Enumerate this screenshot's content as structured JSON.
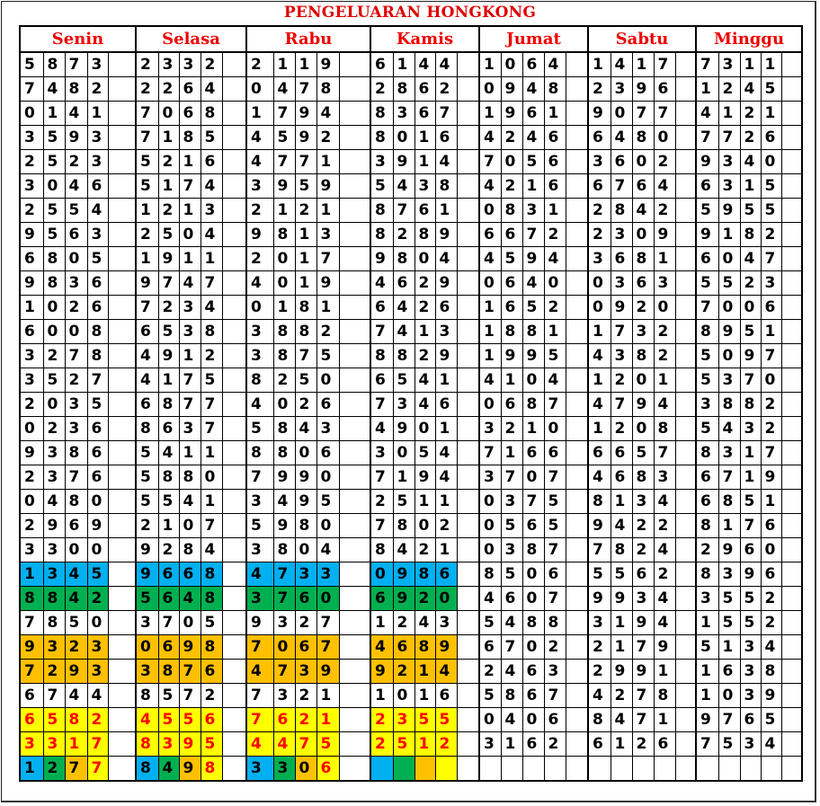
{
  "title": "PENGELUARAN HONGKONG",
  "colors": {
    "blue": "#00b0f0",
    "green": "#00b050",
    "orange": "#ffc000",
    "yellow": "#ffff00",
    "header_text": "#ee0000",
    "highlight_text": "#ff0000"
  },
  "row_colors": [
    null,
    null,
    null,
    null,
    null,
    null,
    null,
    null,
    null,
    null,
    null,
    null,
    null,
    null,
    null,
    null,
    null,
    null,
    null,
    null,
    null,
    "blue",
    "green",
    null,
    "orange",
    "orange",
    null,
    "yellow",
    "yellow",
    null
  ],
  "highlighted_days_count": 4,
  "last_row_cell_colors": [
    "blue",
    "green",
    "orange",
    "yellow"
  ],
  "days": [
    {
      "name": "Senin",
      "rows": [
        "5873",
        "7482",
        "0141",
        "3593",
        "2523",
        "3046",
        "2554",
        "9563",
        "6805",
        "9836",
        "1026",
        "6008",
        "3278",
        "3527",
        "2035",
        "0236",
        "9386",
        "2376",
        "0480",
        "2969",
        "3300",
        "1345",
        "8842",
        "7850",
        "9323",
        "7293",
        "6744",
        "6582",
        "3317",
        "1277"
      ]
    },
    {
      "name": "Selasa",
      "rows": [
        "2332",
        "2264",
        "7068",
        "7185",
        "5216",
        "5174",
        "1213",
        "2504",
        "1911",
        "9747",
        "7234",
        "6538",
        "4912",
        "4175",
        "6877",
        "8637",
        "5411",
        "5880",
        "5541",
        "2107",
        "9284",
        "9668",
        "5648",
        "3705",
        "0698",
        "3876",
        "8572",
        "4556",
        "8395",
        "8498"
      ]
    },
    {
      "name": "Rabu",
      "rows": [
        "2119",
        "0478",
        "1794",
        "4592",
        "4771",
        "3959",
        "2121",
        "9813",
        "2017",
        "4019",
        "0181",
        "3882",
        "3875",
        "8250",
        "4026",
        "5843",
        "8806",
        "7990",
        "3495",
        "5980",
        "3804",
        "4733",
        "3760",
        "9327",
        "7067",
        "4739",
        "7321",
        "7621",
        "4475",
        "3306"
      ]
    },
    {
      "name": "Kamis",
      "rows": [
        "6144",
        "2862",
        "8367",
        "8016",
        "3914",
        "5438",
        "8761",
        "8289",
        "9804",
        "4629",
        "6426",
        "7413",
        "8829",
        "6541",
        "7346",
        "4901",
        "3054",
        "7194",
        "2511",
        "7802",
        "8421",
        "0986",
        "6920",
        "1243",
        "4689",
        "9214",
        "1016",
        "2355",
        "2512",
        ""
      ]
    },
    {
      "name": "Jumat",
      "rows": [
        "1064",
        "0948",
        "1961",
        "4246",
        "7056",
        "4216",
        "0831",
        "6672",
        "4594",
        "0640",
        "1652",
        "1881",
        "1995",
        "4104",
        "0687",
        "3210",
        "7166",
        "3707",
        "0375",
        "0565",
        "0387",
        "8506",
        "4607",
        "5488",
        "6702",
        "2463",
        "5867",
        "0406",
        "3162",
        ""
      ]
    },
    {
      "name": "Sabtu",
      "rows": [
        "1417",
        "2396",
        "9077",
        "6480",
        "3602",
        "6764",
        "2842",
        "2309",
        "3681",
        "0363",
        "0920",
        "1732",
        "4382",
        "1201",
        "4794",
        "1208",
        "6657",
        "4683",
        "8134",
        "9422",
        "7824",
        "5562",
        "9934",
        "3194",
        "2179",
        "2991",
        "4278",
        "8471",
        "6126",
        ""
      ]
    },
    {
      "name": "Minggu",
      "rows": [
        "7311",
        "1245",
        "4121",
        "7726",
        "9340",
        "6315",
        "5955",
        "9182",
        "6047",
        "5523",
        "7006",
        "8951",
        "5097",
        "5370",
        "3882",
        "5432",
        "8317",
        "6719",
        "6851",
        "8176",
        "2960",
        "8396",
        "3552",
        "1552",
        "5134",
        "1638",
        "1039",
        "9765",
        "7534",
        ""
      ]
    }
  ]
}
